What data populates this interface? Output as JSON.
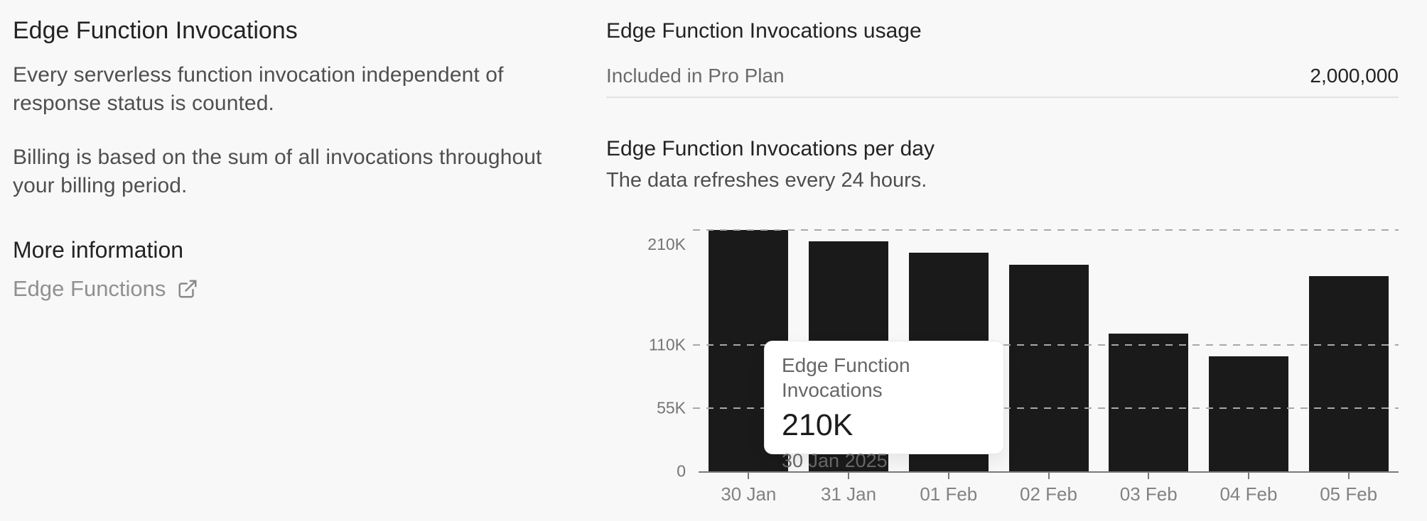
{
  "left_panel": {
    "title": "Edge Function Invocations",
    "description_1": "Every serverless function invocation independent of\nresponse status is counted.",
    "description_2": "Billing is based on the sum of all invocations throughout\nyour billing period.",
    "more_info_heading": "More information",
    "link_label": "Edge Functions"
  },
  "usage_panel": {
    "heading": "Edge Function Invocations usage",
    "included_label": "Included in Pro Plan",
    "included_value": "2,000,000"
  },
  "chart_section": {
    "heading": "Edge Function Invocations per day",
    "subheading": "The data refreshes every 24 hours."
  },
  "tooltip": {
    "title": "Edge Function Invocations",
    "value": "210K",
    "date": "30 Jan 2025"
  },
  "chart_data": {
    "type": "bar",
    "title": "Edge Function Invocations per day",
    "series_name": "Edge Function Invocations",
    "categories": [
      "30 Jan",
      "31 Jan",
      "01 Feb",
      "02 Feb",
      "03 Feb",
      "04 Feb",
      "05 Feb"
    ],
    "values": [
      210000,
      200000,
      190000,
      180000,
      120000,
      100000,
      170000
    ],
    "value_labels": [
      "210K",
      "200K",
      "190K",
      "180K",
      "120K",
      "100K",
      "170K"
    ],
    "xlabel": "",
    "ylabel": "",
    "ylim": [
      0,
      210000
    ],
    "yticks": [
      {
        "value": 0,
        "label": "0"
      },
      {
        "value": 55000,
        "label": "55K"
      },
      {
        "value": 110000,
        "label": "110K"
      },
      {
        "value": 210000,
        "label": "210K"
      }
    ],
    "grid": "dashed-horizontal",
    "legend": "none",
    "bar_color": "#1a1a1a",
    "highlighted_category": "30 Jan"
  },
  "colors": {
    "background": "#f8f8f8",
    "bar": "#1a1a1a",
    "heading_text": "#232323",
    "body_text": "#4f4f4f",
    "muted_text": "#6b6b6b",
    "axis_label_text": "#828282",
    "divider": "#e2e2e2",
    "gridline": "#a8a8a8",
    "axis_line": "#7a7a7a",
    "tooltip_background": "#ffffff"
  }
}
